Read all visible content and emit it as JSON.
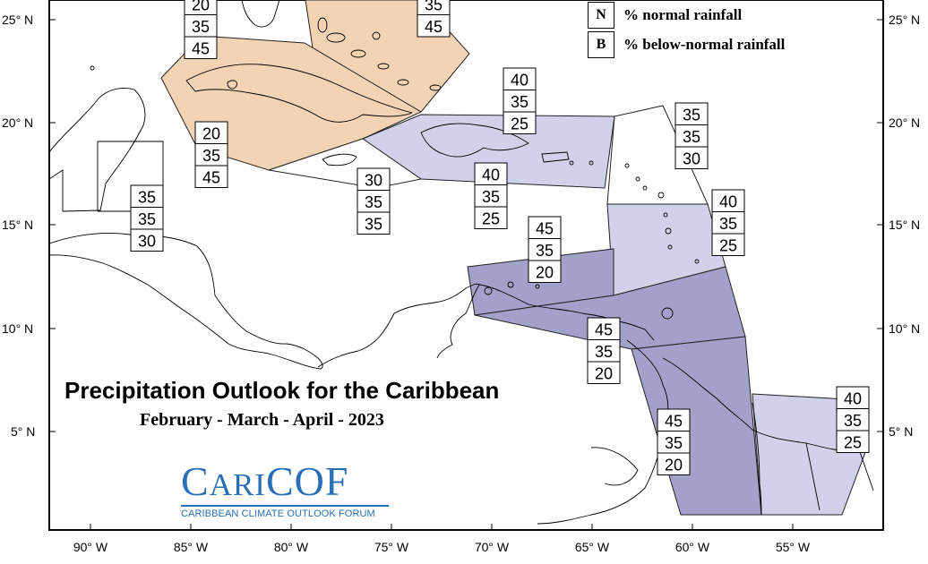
{
  "title": "Precipitation Outlook for the Caribbean",
  "subtitle": "February - March - April - 2023",
  "legend": [
    {
      "key": "N",
      "label": "% normal rainfall"
    },
    {
      "key": "B",
      "label": "% below-normal rainfall"
    }
  ],
  "logo": {
    "word_big1": "C",
    "word_small": "ARI",
    "word_big2": "COF",
    "tagline": "CARIBBEAN CLIMATE OUTLOOK FORUM"
  },
  "axes": {
    "lat_labels": [
      "25° N",
      "20° N",
      "15° N",
      "10° N",
      "5° N"
    ],
    "lon_labels": [
      "90° W",
      "85° W",
      "80° W",
      "75° W",
      "70° W",
      "65° W",
      "60° W",
      "55° W"
    ]
  },
  "colors": {
    "below_strong": "#a3a0c9",
    "below_light": "#d2d1ea",
    "above": "#f2d3b4"
  },
  "prob_boxes": [
    {
      "id": "bahamas-west",
      "values": [
        "20",
        "35",
        "45"
      ]
    },
    {
      "id": "bahamas-east",
      "values": [
        "35",
        "45"
      ]
    },
    {
      "id": "hispaniola-north",
      "values": [
        "40",
        "35",
        "25"
      ]
    },
    {
      "id": "cuba",
      "values": [
        "20",
        "35",
        "45"
      ]
    },
    {
      "id": "belize",
      "values": [
        "35",
        "35",
        "30"
      ]
    },
    {
      "id": "jamaica",
      "values": [
        "30",
        "35",
        "35"
      ]
    },
    {
      "id": "puerto-rico",
      "values": [
        "40",
        "35",
        "25"
      ]
    },
    {
      "id": "northern-leewards",
      "values": [
        "35",
        "35",
        "30"
      ]
    },
    {
      "id": "windwards",
      "values": [
        "40",
        "35",
        "25"
      ]
    },
    {
      "id": "abc-islands",
      "values": [
        "45",
        "35",
        "20"
      ]
    },
    {
      "id": "trinidad",
      "values": [
        "45",
        "35",
        "20"
      ]
    },
    {
      "id": "guyana",
      "values": [
        "45",
        "35",
        "20"
      ]
    },
    {
      "id": "suriname-guiana",
      "values": [
        "40",
        "35",
        "25"
      ]
    }
  ]
}
